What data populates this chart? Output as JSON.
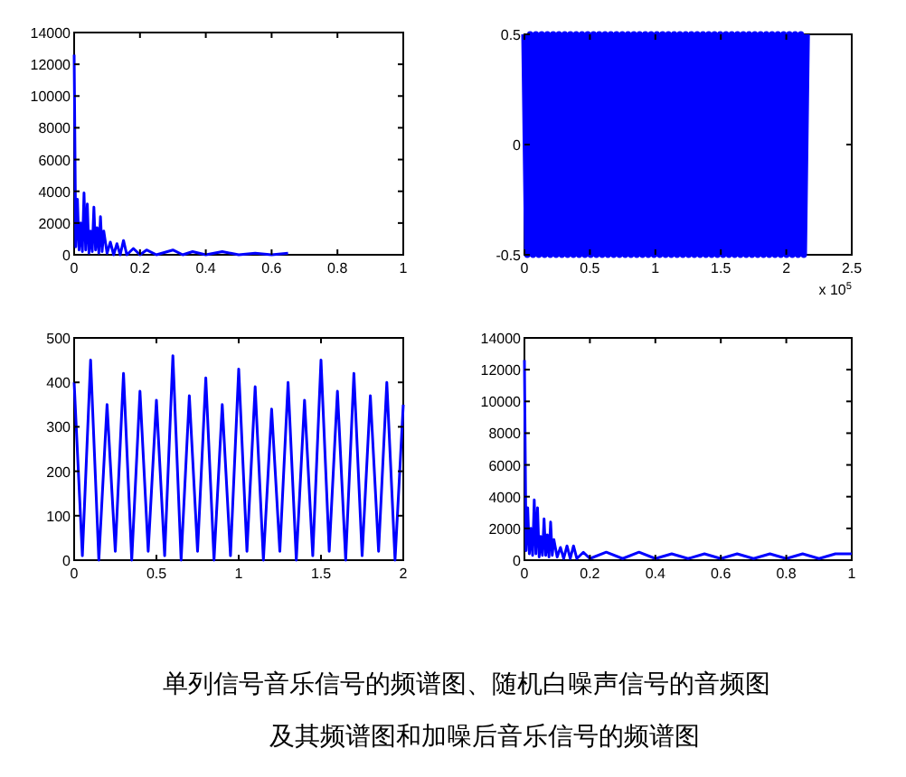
{
  "chart_data": [
    {
      "type": "line",
      "color": "#0000ff",
      "xlim": [
        0,
        1
      ],
      "ylim": [
        0,
        14000
      ],
      "xticks": [
        0,
        0.2,
        0.4,
        0.6,
        0.8,
        1
      ],
      "yticks": [
        0,
        2000,
        4000,
        6000,
        8000,
        10000,
        12000,
        14000
      ],
      "x": [
        0,
        0.005,
        0.01,
        0.015,
        0.02,
        0.025,
        0.03,
        0.035,
        0.04,
        0.045,
        0.05,
        0.055,
        0.06,
        0.065,
        0.07,
        0.075,
        0.08,
        0.085,
        0.09,
        0.1,
        0.11,
        0.12,
        0.13,
        0.14,
        0.15,
        0.16,
        0.18,
        0.2,
        0.22,
        0.25,
        0.3,
        0.33,
        0.36,
        0.4,
        0.45,
        0.5,
        0.55,
        0.6,
        0.65
      ],
      "values": [
        12600,
        500,
        3500,
        300,
        2000,
        200,
        3900,
        300,
        3200,
        100,
        1500,
        200,
        3000,
        300,
        1700,
        100,
        2400,
        200,
        1500,
        100,
        800,
        0,
        700,
        0,
        900,
        0,
        400,
        0,
        300,
        0,
        300,
        0,
        200,
        0,
        200,
        0,
        100,
        0,
        100
      ]
    },
    {
      "type": "line",
      "color": "#0000ff",
      "xlim": [
        0,
        2.5
      ],
      "ylim": [
        -0.5,
        0.5
      ],
      "xticks": [
        0,
        0.5,
        1,
        1.5,
        2,
        2.5
      ],
      "yticks": [
        -0.5,
        0,
        0.5
      ],
      "annotations": [
        "x 10$^{5}$"
      ],
      "x": [
        0,
        0.022,
        0.044,
        0.066,
        0.088,
        0.11,
        0.132,
        0.154,
        0.176,
        0.198,
        0.22,
        0.242,
        0.264,
        0.286,
        0.308,
        0.33,
        0.352,
        0.374,
        0.396,
        0.418,
        0.44,
        0.462,
        0.484,
        0.506,
        0.528,
        0.55,
        0.572,
        0.594,
        0.616,
        0.638,
        0.66,
        0.682,
        0.704,
        0.726,
        0.748,
        0.77,
        0.792,
        0.814,
        0.836,
        0.858,
        0.88,
        0.902,
        0.924,
        0.946,
        0.968,
        0.99,
        1.012,
        1.034,
        1.056,
        1.078,
        1.1,
        1.122,
        1.144,
        1.166,
        1.188,
        1.21,
        1.232,
        1.254,
        1.276,
        1.298,
        1.32,
        1.342,
        1.364,
        1.386,
        1.408,
        1.43,
        1.452,
        1.474,
        1.496,
        1.518,
        1.54,
        1.562,
        1.584,
        1.606,
        1.628,
        1.65,
        1.672,
        1.694,
        1.716,
        1.738,
        1.76,
        1.782,
        1.804,
        1.826,
        1.848,
        1.87,
        1.892,
        1.914,
        1.936,
        1.958,
        1.98,
        2.002,
        2.024,
        2.046,
        2.068,
        2.09,
        2.112,
        2.134,
        2.156
      ],
      "values": [
        0.5,
        -0.5,
        0.5,
        -0.5,
        0.5,
        -0.5,
        0.5,
        -0.5,
        0.5,
        -0.5,
        0.5,
        -0.5,
        0.5,
        -0.5,
        0.5,
        -0.5,
        0.5,
        -0.5,
        0.5,
        -0.5,
        0.5,
        -0.5,
        0.5,
        -0.5,
        0.5,
        -0.5,
        0.5,
        -0.5,
        0.5,
        -0.5,
        0.5,
        -0.5,
        0.5,
        -0.5,
        0.5,
        -0.5,
        0.5,
        -0.5,
        0.5,
        -0.5,
        0.5,
        -0.5,
        0.5,
        -0.5,
        0.5,
        -0.5,
        0.5,
        -0.5,
        0.5,
        -0.5,
        0.5,
        -0.5,
        0.5,
        -0.5,
        0.5,
        -0.5,
        0.5,
        -0.5,
        0.5,
        -0.5,
        0.5,
        -0.5,
        0.5,
        -0.5,
        0.5,
        -0.5,
        0.5,
        -0.5,
        0.5,
        -0.5,
        0.5,
        -0.5,
        0.5,
        -0.5,
        0.5,
        -0.5,
        0.5,
        -0.5,
        0.5,
        -0.5,
        0.5,
        -0.5,
        0.5,
        -0.5,
        0.5,
        -0.5,
        0.5,
        -0.5,
        0.5,
        -0.5,
        0.5,
        -0.5,
        0.5,
        -0.5,
        0.5,
        -0.5,
        0.5,
        -0.5,
        0.5
      ]
    },
    {
      "type": "line",
      "color": "#0000ff",
      "xlim": [
        0,
        2
      ],
      "ylim": [
        0,
        500
      ],
      "xticks": [
        0,
        0.5,
        1,
        1.5,
        2
      ],
      "yticks": [
        0,
        100,
        200,
        300,
        400,
        500
      ],
      "x": [
        0,
        0.05,
        0.1,
        0.15,
        0.2,
        0.25,
        0.3,
        0.35,
        0.4,
        0.45,
        0.5,
        0.55,
        0.6,
        0.65,
        0.7,
        0.75,
        0.8,
        0.85,
        0.9,
        0.95,
        1,
        1.05,
        1.1,
        1.15,
        1.2,
        1.25,
        1.3,
        1.35,
        1.4,
        1.45,
        1.5,
        1.55,
        1.6,
        1.65,
        1.7,
        1.75,
        1.8,
        1.85,
        1.9,
        1.95,
        2
      ],
      "values": [
        400,
        10,
        450,
        0,
        350,
        20,
        420,
        0,
        380,
        20,
        360,
        10,
        460,
        0,
        370,
        20,
        410,
        0,
        350,
        10,
        430,
        20,
        390,
        0,
        340,
        20,
        400,
        0,
        360,
        10,
        450,
        20,
        380,
        0,
        420,
        10,
        370,
        20,
        400,
        0,
        350
      ]
    },
    {
      "type": "line",
      "color": "#0000ff",
      "xlim": [
        0,
        1
      ],
      "ylim": [
        0,
        14000
      ],
      "xticks": [
        0,
        0.2,
        0.4,
        0.6,
        0.8,
        1
      ],
      "yticks": [
        0,
        2000,
        4000,
        6000,
        8000,
        10000,
        12000,
        14000
      ],
      "x": [
        0,
        0.005,
        0.01,
        0.015,
        0.02,
        0.025,
        0.03,
        0.035,
        0.04,
        0.045,
        0.05,
        0.055,
        0.06,
        0.065,
        0.07,
        0.075,
        0.08,
        0.085,
        0.09,
        0.1,
        0.11,
        0.12,
        0.13,
        0.14,
        0.15,
        0.16,
        0.18,
        0.2,
        0.25,
        0.3,
        0.35,
        0.4,
        0.45,
        0.5,
        0.55,
        0.6,
        0.65,
        0.7,
        0.75,
        0.8,
        0.85,
        0.9,
        0.95,
        1
      ],
      "values": [
        12600,
        600,
        3300,
        400,
        2000,
        300,
        3800,
        400,
        3300,
        200,
        1500,
        300,
        2600,
        300,
        1600,
        200,
        2400,
        300,
        1300,
        200,
        800,
        100,
        900,
        100,
        900,
        100,
        500,
        100,
        500,
        100,
        500,
        100,
        400,
        100,
        400,
        100,
        400,
        100,
        400,
        100,
        400,
        100,
        400,
        400
      ]
    },
    {
      "type": "other",
      "annotations": [
        "单列信号音乐信号的频谱图、随机白噪声信号的音频图",
        "及其频谱图和加噪后音乐信号的频谱图"
      ]
    }
  ]
}
